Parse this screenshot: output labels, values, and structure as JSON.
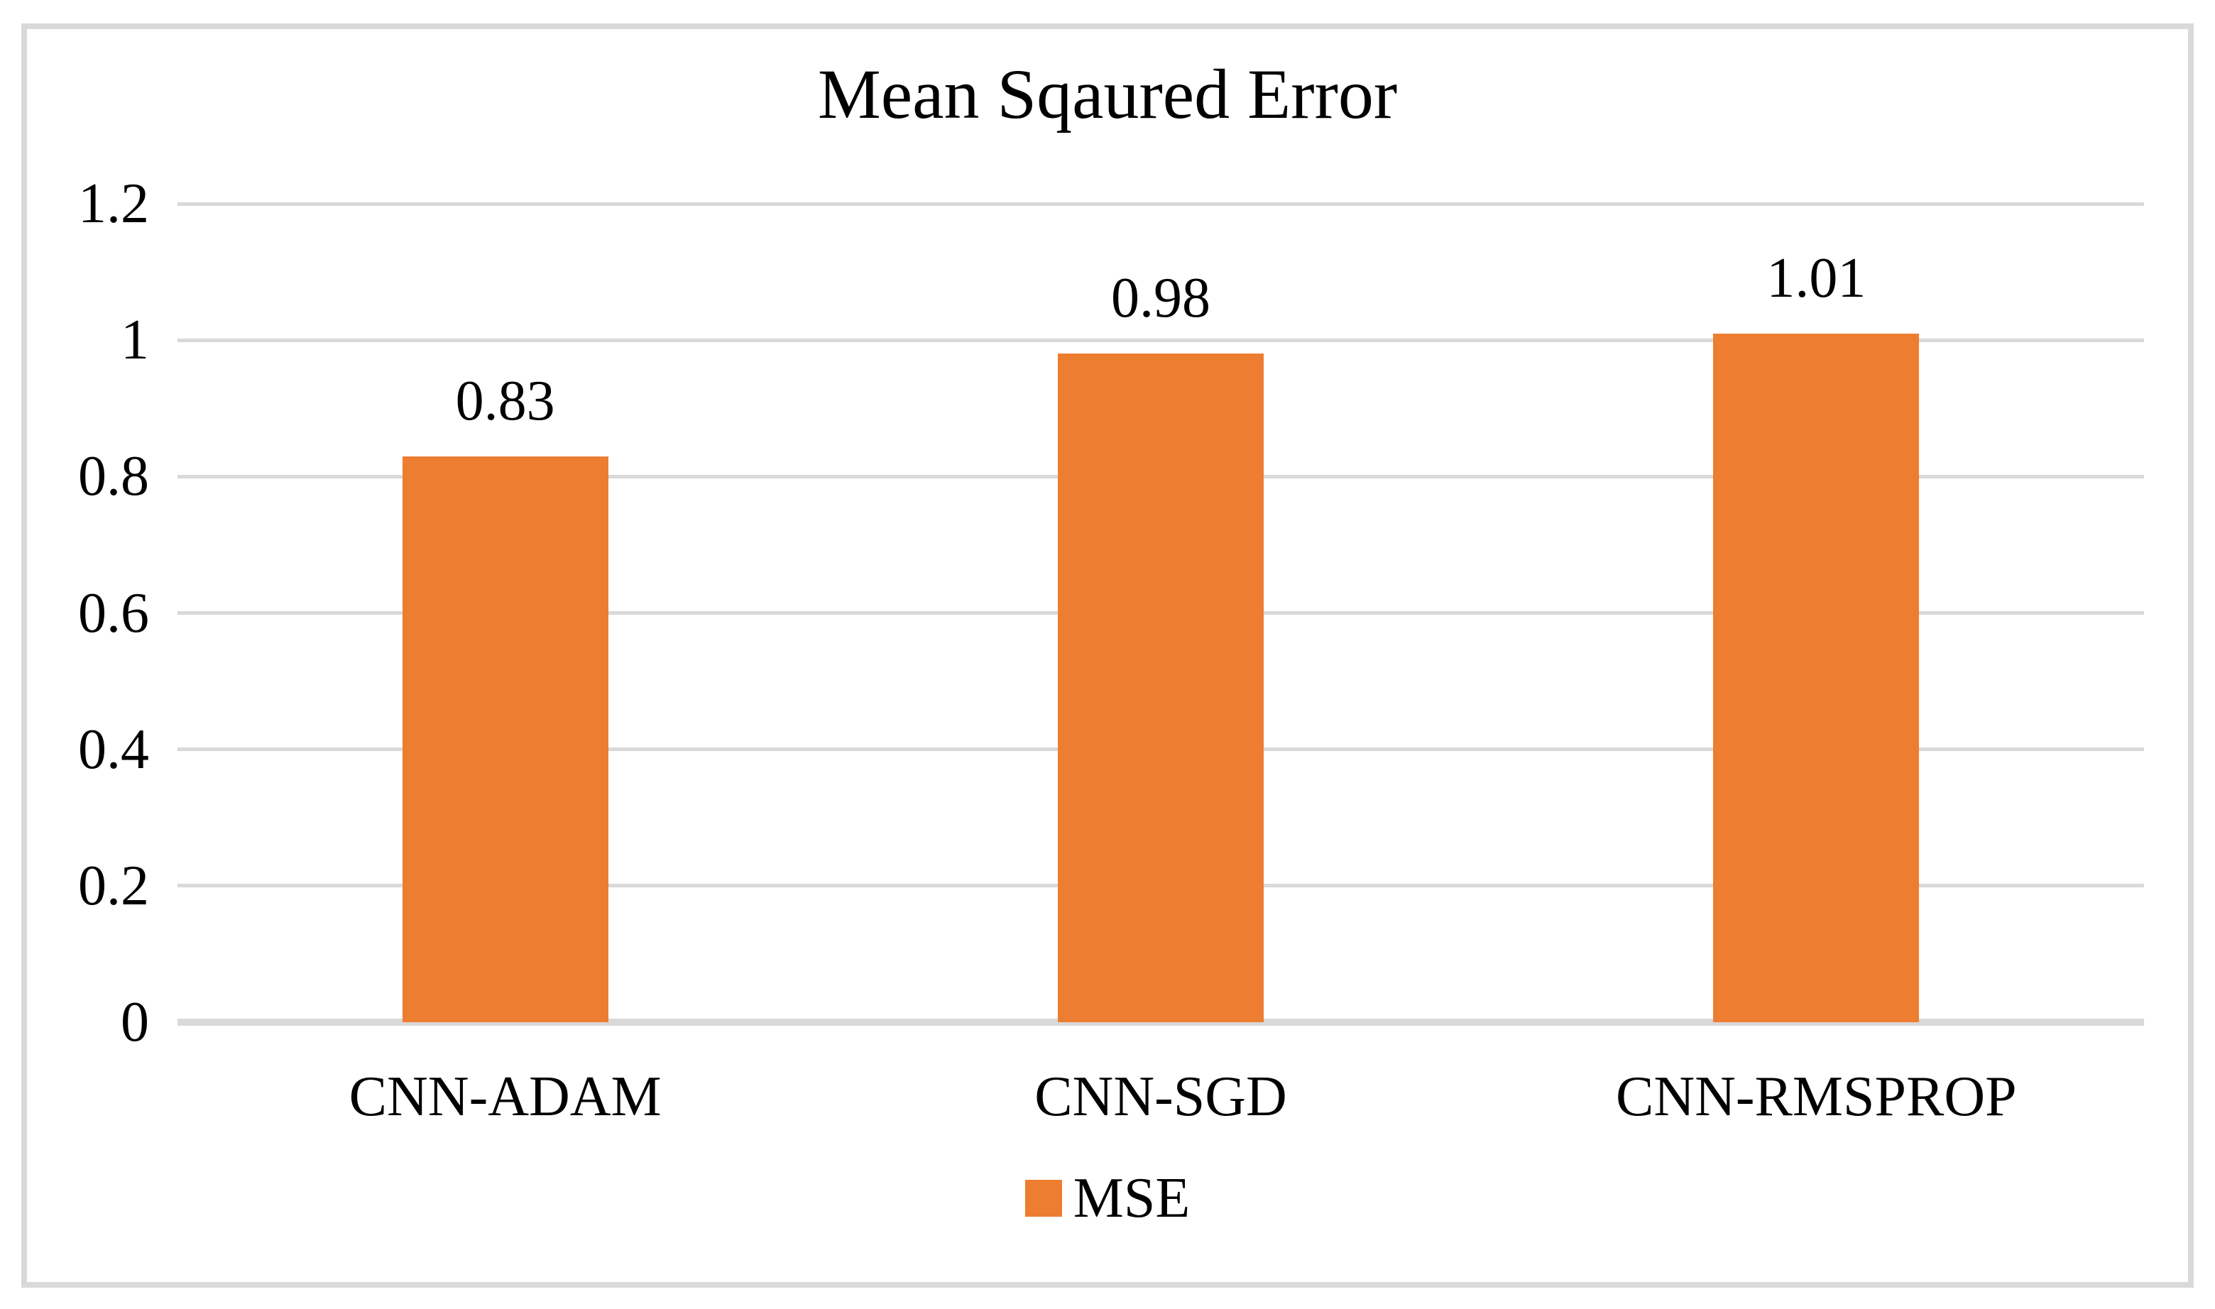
{
  "chart_data": {
    "type": "bar",
    "title": "Mean Sqaured Error",
    "categories": [
      "CNN-ADAM",
      "CNN-SGD",
      "CNN-RMSPROP"
    ],
    "series": [
      {
        "name": "MSE",
        "color": "#ED7D31",
        "values": [
          0.83,
          0.98,
          1.01
        ]
      }
    ],
    "data_labels": [
      "0.83",
      "0.98",
      "1.01"
    ],
    "xlabel": "",
    "ylabel": "",
    "y_axis": {
      "min": 0,
      "max": 1.2,
      "ticks": [
        {
          "value": 0,
          "label": "0"
        },
        {
          "value": 0.2,
          "label": "0.2"
        },
        {
          "value": 0.4,
          "label": "0.4"
        },
        {
          "value": 0.6,
          "label": "0.6"
        },
        {
          "value": 0.8,
          "label": "0.8"
        },
        {
          "value": 1,
          "label": "1"
        },
        {
          "value": 1.2,
          "label": "1.2"
        }
      ]
    },
    "grid": true,
    "legend": {
      "position": "bottom",
      "entries": [
        {
          "label": "MSE",
          "color": "#ED7D31"
        }
      ]
    },
    "colors": {
      "bar": "#ED7D31",
      "gridline": "#D9D9D9",
      "axis_line": "#D9D9D9",
      "frame_border": "#D9D9D9",
      "text": "#000000",
      "background": "#FFFFFF"
    }
  }
}
